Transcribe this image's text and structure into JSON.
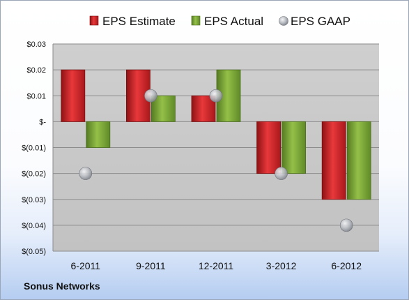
{
  "company": "Sonus Networks",
  "colors": {
    "estimate": "#d9262a",
    "actual": "#7fad3a",
    "gaap": "#b9bcc2",
    "plot_bg": "#c8c8c8"
  },
  "chart_data": {
    "type": "bar",
    "title": "",
    "xlabel": "",
    "ylabel": "",
    "categories": [
      "6-2011",
      "9-2011",
      "12-2011",
      "3-2012",
      "6-2012"
    ],
    "series": [
      {
        "name": "EPS Estimate",
        "kind": "bar",
        "values": [
          0.02,
          0.02,
          0.01,
          -0.02,
          -0.03
        ]
      },
      {
        "name": "EPS Actual",
        "kind": "bar",
        "values": [
          -0.01,
          0.01,
          0.02,
          -0.02,
          -0.03
        ]
      },
      {
        "name": "EPS GAAP",
        "kind": "marker",
        "values": [
          -0.02,
          0.01,
          0.01,
          -0.02,
          -0.04
        ]
      }
    ],
    "ylim": [
      -0.05,
      0.03
    ],
    "yticks": [
      0.03,
      0.02,
      0.01,
      0,
      -0.01,
      -0.02,
      -0.03,
      -0.04,
      -0.05
    ],
    "ytick_labels": [
      "$0.03",
      "$0.02",
      "$0.01",
      "$-",
      "$(0.01)",
      "$(0.02)",
      "$(0.03)",
      "$(0.04)",
      "$(0.05)"
    ],
    "grid": true,
    "legend_position": "top"
  }
}
